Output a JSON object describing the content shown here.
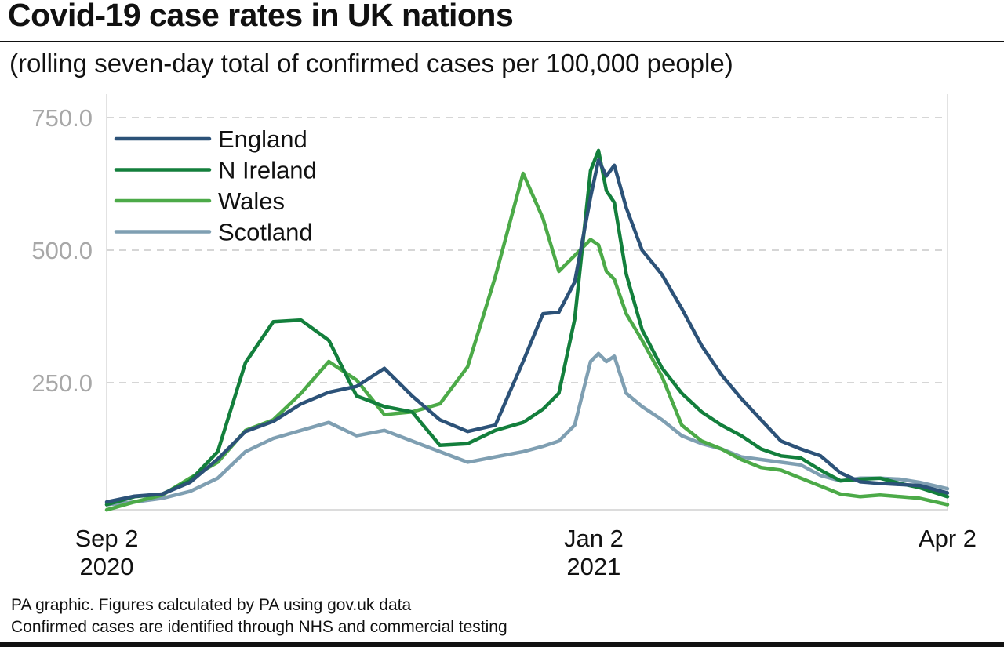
{
  "chart_data": {
    "type": "line",
    "title": "Covid-19 case rates in UK nations",
    "subtitle": "(rolling seven-day total of confirmed cases per 100,000 people)",
    "ylim": [
      0,
      750
    ],
    "yticks": [
      "250.0",
      "500.0",
      "750.0"
    ],
    "ytick_values": [
      250,
      500,
      750
    ],
    "xlim": [
      "2020-09-02",
      "2021-04-02"
    ],
    "xticks": [
      {
        "date": "2020-09-02",
        "line1": "Sep 2",
        "line2": "2020"
      },
      {
        "date": "2021-01-02",
        "line1": "Jan 2",
        "line2": "2021"
      },
      {
        "date": "2021-04-02",
        "line1": "Apr 2",
        "line2": ""
      }
    ],
    "grid": "horizontal dashed",
    "legend_position": "top-left",
    "x": [
      "2020-09-02",
      "2020-09-09",
      "2020-09-16",
      "2020-09-23",
      "2020-09-30",
      "2020-10-07",
      "2020-10-14",
      "2020-10-21",
      "2020-10-28",
      "2020-11-04",
      "2020-11-11",
      "2020-11-18",
      "2020-11-25",
      "2020-12-02",
      "2020-12-09",
      "2020-12-16",
      "2020-12-21",
      "2020-12-25",
      "2020-12-29",
      "2021-01-02",
      "2021-01-04",
      "2021-01-06",
      "2021-01-08",
      "2021-01-11",
      "2021-01-15",
      "2021-01-20",
      "2021-01-25",
      "2021-01-30",
      "2021-02-04",
      "2021-02-09",
      "2021-02-14",
      "2021-02-19",
      "2021-02-24",
      "2021-03-01",
      "2021-03-06",
      "2021-03-11",
      "2021-03-16",
      "2021-03-21",
      "2021-03-26",
      "2021-04-02"
    ],
    "series": [
      {
        "name": "England",
        "color": "#2c5278",
        "values": [
          25,
          36,
          40,
          62,
          106,
          158,
          177,
          210,
          232,
          243,
          277,
          225,
          180,
          158,
          170,
          290,
          380,
          383,
          440,
          600,
          670,
          640,
          660,
          580,
          500,
          454,
          390,
          320,
          265,
          220,
          180,
          140,
          125,
          112,
          80,
          63,
          60,
          58,
          56,
          42
        ]
      },
      {
        "name": "N Ireland",
        "color": "#137f3c",
        "values": [
          20,
          35,
          40,
          65,
          120,
          288,
          365,
          368,
          330,
          225,
          205,
          195,
          132,
          135,
          160,
          175,
          200,
          230,
          370,
          650,
          688,
          612,
          590,
          455,
          350,
          278,
          230,
          195,
          170,
          150,
          125,
          112,
          108,
          85,
          65,
          68,
          70,
          60,
          52,
          35
        ]
      },
      {
        "name": "Wales",
        "color": "#4caa48",
        "values": [
          10,
          25,
          38,
          70,
          100,
          160,
          180,
          230,
          290,
          255,
          190,
          195,
          210,
          280,
          450,
          645,
          560,
          460,
          490,
          520,
          510,
          460,
          445,
          380,
          330,
          262,
          170,
          140,
          125,
          105,
          90,
          85,
          70,
          55,
          40,
          35,
          38,
          35,
          32,
          20
        ]
      },
      {
        "name": "Scotland",
        "color": "#7f9fb2",
        "values": [
          20,
          25,
          32,
          45,
          70,
          120,
          145,
          160,
          175,
          150,
          160,
          140,
          120,
          100,
          110,
          120,
          130,
          140,
          170,
          290,
          305,
          290,
          300,
          230,
          205,
          180,
          150,
          135,
          125,
          110,
          105,
          100,
          95,
          75,
          65,
          70,
          70,
          68,
          62,
          50
        ]
      }
    ]
  },
  "footer": {
    "line1": "PA graphic. Figures calculated by PA using gov.uk data",
    "line2": "Confirmed cases are identified through NHS and commercial testing"
  }
}
